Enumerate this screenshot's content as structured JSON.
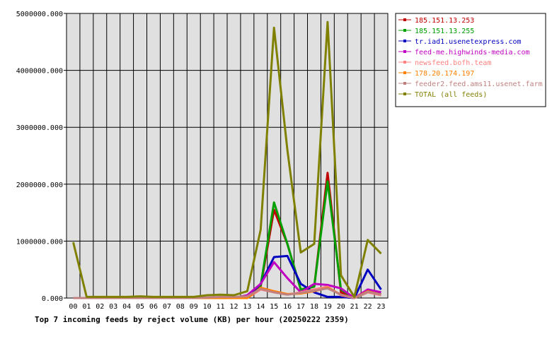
{
  "chart_data": {
    "type": "line",
    "title": "Top 7 incoming feeds by reject volume (KB) per hour (20250222 2359)",
    "categories": [
      "00",
      "01",
      "02",
      "03",
      "04",
      "05",
      "06",
      "07",
      "08",
      "09",
      "10",
      "11",
      "12",
      "13",
      "14",
      "15",
      "16",
      "17",
      "18",
      "19",
      "20",
      "21",
      "22",
      "23"
    ],
    "y_ticks": [
      "0.000",
      "1000000.000",
      "2000000.000",
      "3000000.000",
      "4000000.000",
      "5000000.000"
    ],
    "ylim": [
      0,
      5000000
    ],
    "grid": true,
    "legend_position": "right",
    "plot_background": "#e0e0e0",
    "series": [
      {
        "name": "185.151.13.253",
        "color": "#c00000",
        "values": [
          0,
          0,
          0,
          0,
          0,
          0,
          0,
          0,
          0,
          0,
          0,
          0,
          0,
          0,
          200000,
          1550000,
          950000,
          150000,
          200000,
          2200000,
          100000,
          0,
          100000,
          100000
        ]
      },
      {
        "name": "185.151.13.255",
        "color": "#00a000",
        "values": [
          0,
          0,
          0,
          0,
          0,
          0,
          0,
          0,
          0,
          0,
          0,
          0,
          0,
          0,
          220000,
          1680000,
          950000,
          150000,
          200000,
          2050000,
          150000,
          0,
          100000,
          100000
        ]
      },
      {
        "name": "tr.iad1.usenetexpress.com",
        "color": "#0000c0",
        "values": [
          0,
          0,
          0,
          0,
          0,
          0,
          0,
          0,
          0,
          0,
          0,
          0,
          0,
          0,
          250000,
          720000,
          740000,
          250000,
          100000,
          20000,
          20000,
          0,
          500000,
          150000
        ]
      },
      {
        "name": "feed-me.highwinds-media.com",
        "color": "#c000c0",
        "values": [
          0,
          0,
          0,
          0,
          0,
          0,
          0,
          0,
          0,
          0,
          0,
          0,
          0,
          50000,
          250000,
          630000,
          350000,
          100000,
          250000,
          230000,
          170000,
          0,
          150000,
          100000
        ]
      },
      {
        "name": "newsfeed.bofh.team",
        "color": "#ff8080",
        "values": [
          0,
          0,
          0,
          0,
          0,
          0,
          0,
          0,
          0,
          0,
          0,
          0,
          0,
          0,
          150000,
          100000,
          60000,
          100000,
          150000,
          200000,
          50000,
          0,
          100000,
          50000
        ]
      },
      {
        "name": "178.20.174.197",
        "color": "#ff8000",
        "values": [
          0,
          0,
          0,
          0,
          0,
          0,
          0,
          0,
          0,
          0,
          0,
          0,
          0,
          0,
          180000,
          120000,
          70000,
          80000,
          120000,
          180000,
          60000,
          0,
          120000,
          60000
        ]
      },
      {
        "name": "feeder2.feed.ams11.usenet.farm",
        "color": "#c08080",
        "values": [
          0,
          0,
          0,
          0,
          0,
          0,
          0,
          0,
          0,
          0,
          10000,
          20000,
          20000,
          30000,
          160000,
          100000,
          60000,
          90000,
          130000,
          170000,
          60000,
          0,
          110000,
          60000
        ]
      },
      {
        "name": "TOTAL (all feeds)",
        "color": "#808000",
        "values": [
          980000,
          20000,
          20000,
          20000,
          20000,
          30000,
          20000,
          20000,
          20000,
          20000,
          50000,
          60000,
          50000,
          120000,
          1200000,
          4750000,
          2600000,
          800000,
          950000,
          4850000,
          400000,
          20000,
          1020000,
          780000
        ]
      }
    ]
  }
}
